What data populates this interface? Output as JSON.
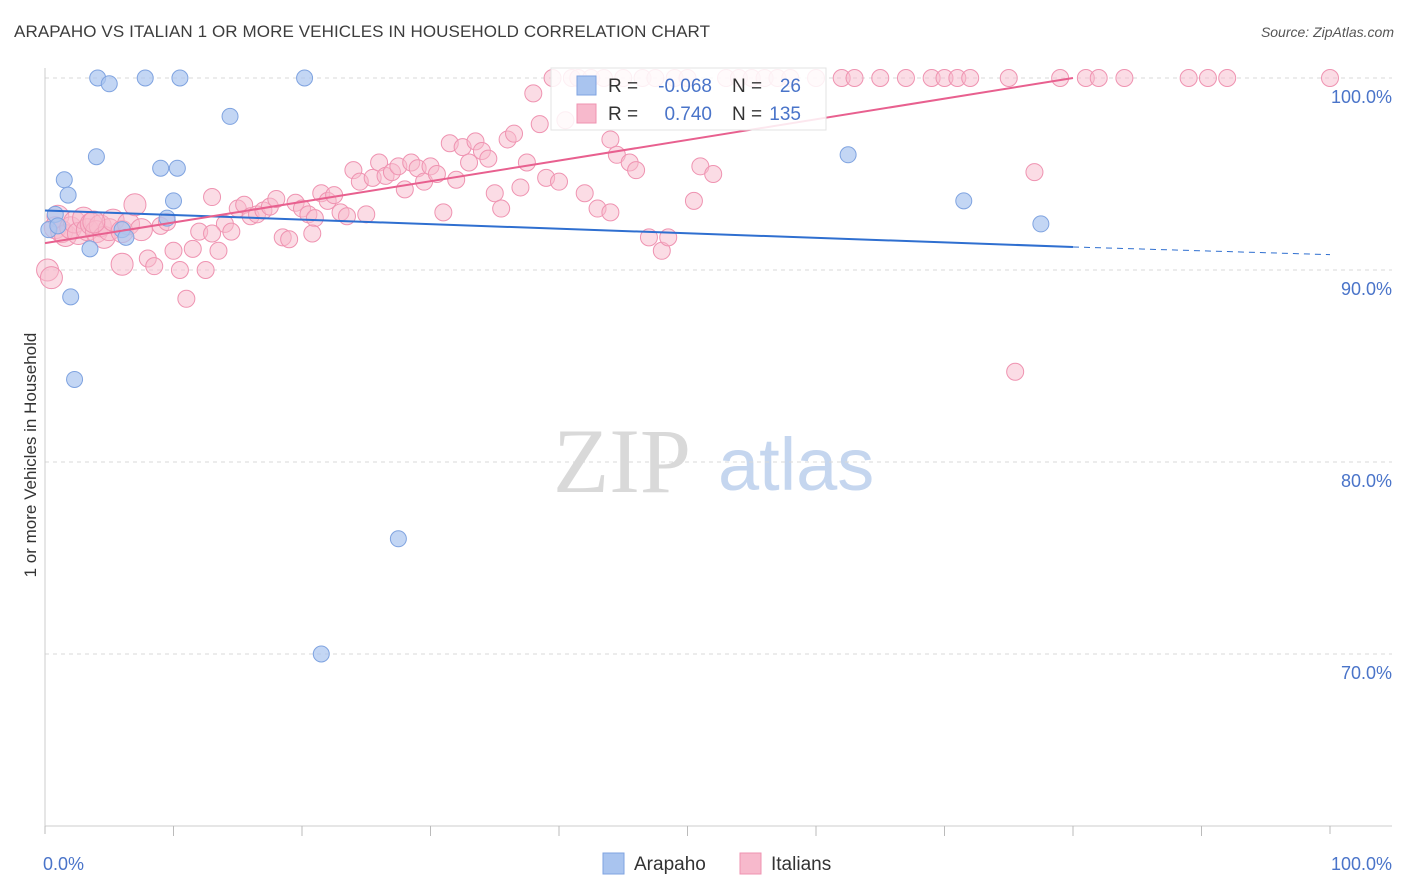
{
  "title": "ARAPAHO VS ITALIAN 1 OR MORE VEHICLES IN HOUSEHOLD CORRELATION CHART",
  "source": "Source: ZipAtlas.com",
  "watermark": {
    "zip": "ZIP",
    "atlas": "atlas"
  },
  "colors": {
    "arapaho_fill": "#a9c4ef",
    "arapaho_stroke": "#7fa3e0",
    "arapaho_line": "#2f6fd0",
    "italian_fill": "#f7b9cc",
    "italian_stroke": "#ef93b1",
    "italian_line": "#e8608f",
    "tick_text": "#4a74c9",
    "grid": "#d9d9d9"
  },
  "stats": {
    "r_label": "R =",
    "n_label": "N =",
    "rows": [
      {
        "series": "Arapaho",
        "r": "-0.068",
        "n": "26"
      },
      {
        "series": "Italians",
        "r": "0.740",
        "n": "135"
      }
    ]
  },
  "chart_data": {
    "type": "scatter",
    "ylabel": "1 or more Vehicles in Household",
    "xlabel": "",
    "xlim": [
      0,
      100
    ],
    "ylim": [
      60.5,
      101.5
    ],
    "x_tick_labels": [
      "0.0%",
      "100.0%"
    ],
    "y_ticks": [
      70,
      80,
      90,
      100
    ],
    "y_tick_labels": [
      "70.0%",
      "80.0%",
      "90.0%",
      "100.0%"
    ],
    "grid": true,
    "legend_position": "bottom",
    "series": [
      {
        "name": "Arapaho",
        "trend": {
          "x": [
            0,
            80
          ],
          "y": [
            93.1,
            91.2
          ],
          "dashed_to": [
            100,
            90.8
          ]
        },
        "points": [
          [
            0.3,
            92.1
          ],
          [
            0.8,
            92.9
          ],
          [
            1.5,
            94.7
          ],
          [
            1.8,
            93.9
          ],
          [
            2.0,
            88.6
          ],
          [
            2.3,
            84.3
          ],
          [
            3.5,
            91.1
          ],
          [
            4.0,
            95.9
          ],
          [
            4.1,
            100.0
          ],
          [
            5.0,
            99.7
          ],
          [
            6.0,
            92.1
          ],
          [
            6.3,
            91.7
          ],
          [
            7.8,
            100.0
          ],
          [
            9.0,
            95.3
          ],
          [
            9.5,
            92.7
          ],
          [
            10.0,
            93.6
          ],
          [
            10.3,
            95.3
          ],
          [
            10.5,
            100.0
          ],
          [
            14.4,
            98.0
          ],
          [
            20.2,
            100.0
          ],
          [
            21.5,
            70.0
          ],
          [
            27.5,
            76.0
          ],
          [
            62.5,
            96.0
          ],
          [
            71.5,
            93.6
          ],
          [
            77.5,
            92.4
          ],
          [
            1.0,
            92.3
          ]
        ]
      },
      {
        "name": "Italians",
        "trend": {
          "x": [
            0,
            80
          ],
          "y": [
            91.4,
            100.0
          ]
        },
        "points": [
          [
            0.2,
            90.0
          ],
          [
            0.5,
            89.6
          ],
          [
            0.8,
            92.2
          ],
          [
            1.0,
            92.8
          ],
          [
            1.3,
            92.0
          ],
          [
            1.6,
            91.8
          ],
          [
            2.0,
            92.2
          ],
          [
            2.3,
            92.5
          ],
          [
            2.6,
            91.9
          ],
          [
            3.0,
            92.7
          ],
          [
            3.3,
            92.1
          ],
          [
            3.6,
            92.4
          ],
          [
            4.0,
            92.0
          ],
          [
            4.3,
            92.3
          ],
          [
            4.6,
            91.7
          ],
          [
            5.0,
            92.1
          ],
          [
            5.3,
            92.6
          ],
          [
            6.0,
            92.0
          ],
          [
            6.5,
            92.4
          ],
          [
            7.0,
            93.4
          ],
          [
            7.5,
            92.1
          ],
          [
            8.0,
            90.6
          ],
          [
            8.5,
            90.2
          ],
          [
            9.0,
            92.3
          ],
          [
            9.5,
            92.5
          ],
          [
            10.0,
            91.0
          ],
          [
            10.5,
            90.0
          ],
          [
            11.0,
            88.5
          ],
          [
            11.5,
            91.1
          ],
          [
            12.0,
            92.0
          ],
          [
            12.5,
            90.0
          ],
          [
            13.0,
            93.8
          ],
          [
            13.5,
            91.0
          ],
          [
            14.0,
            92.4
          ],
          [
            14.5,
            92.0
          ],
          [
            15.0,
            93.2
          ],
          [
            15.5,
            93.4
          ],
          [
            16.0,
            92.8
          ],
          [
            16.5,
            92.9
          ],
          [
            17.0,
            93.1
          ],
          [
            17.5,
            93.3
          ],
          [
            18.0,
            93.7
          ],
          [
            18.5,
            91.7
          ],
          [
            19.0,
            91.6
          ],
          [
            19.5,
            93.5
          ],
          [
            20.0,
            93.2
          ],
          [
            20.5,
            92.9
          ],
          [
            21.0,
            92.7
          ],
          [
            21.5,
            94.0
          ],
          [
            22.0,
            93.6
          ],
          [
            22.5,
            93.9
          ],
          [
            23.0,
            93.0
          ],
          [
            23.5,
            92.8
          ],
          [
            24.0,
            95.2
          ],
          [
            24.5,
            94.6
          ],
          [
            25.0,
            92.9
          ],
          [
            25.5,
            94.8
          ],
          [
            26.0,
            95.6
          ],
          [
            26.5,
            94.9
          ],
          [
            27.0,
            95.1
          ],
          [
            27.5,
            95.4
          ],
          [
            28.0,
            94.2
          ],
          [
            28.5,
            95.6
          ],
          [
            29.0,
            95.3
          ],
          [
            29.5,
            94.6
          ],
          [
            30.0,
            95.4
          ],
          [
            30.5,
            95.0
          ],
          [
            31.0,
            93.0
          ],
          [
            31.5,
            96.6
          ],
          [
            32.0,
            94.7
          ],
          [
            32.5,
            96.4
          ],
          [
            33.0,
            95.6
          ],
          [
            33.5,
            96.7
          ],
          [
            34.0,
            96.2
          ],
          [
            34.5,
            95.8
          ],
          [
            35.0,
            94.0
          ],
          [
            35.5,
            93.2
          ],
          [
            36.0,
            96.8
          ],
          [
            36.5,
            97.1
          ],
          [
            37.0,
            94.3
          ],
          [
            37.5,
            95.6
          ],
          [
            38.0,
            99.2
          ],
          [
            38.5,
            97.6
          ],
          [
            39.0,
            94.8
          ],
          [
            39.5,
            100.0
          ],
          [
            40.0,
            94.6
          ],
          [
            40.5,
            97.8
          ],
          [
            41.0,
            100.0
          ],
          [
            41.5,
            100.0
          ],
          [
            42.0,
            94.0
          ],
          [
            42.5,
            100.0
          ],
          [
            43.0,
            93.2
          ],
          [
            43.5,
            100.0
          ],
          [
            44.0,
            96.8
          ],
          [
            44.5,
            96.0
          ],
          [
            45.0,
            100.0
          ],
          [
            45.5,
            95.6
          ],
          [
            46.0,
            95.2
          ],
          [
            46.5,
            100.0
          ],
          [
            47.0,
            91.7
          ],
          [
            47.5,
            100.0
          ],
          [
            48.0,
            91.0
          ],
          [
            48.5,
            91.7
          ],
          [
            49.0,
            100.0
          ],
          [
            50.0,
            100.0
          ],
          [
            50.5,
            93.6
          ],
          [
            51.0,
            95.4
          ],
          [
            52.0,
            95.0
          ],
          [
            53.0,
            100.0
          ],
          [
            54.0,
            100.0
          ],
          [
            55.0,
            100.0
          ],
          [
            56.0,
            100.0
          ],
          [
            57.0,
            100.0
          ],
          [
            58.0,
            100.0
          ],
          [
            60.0,
            100.0
          ],
          [
            62.0,
            100.0
          ],
          [
            63.0,
            100.0
          ],
          [
            65.0,
            100.0
          ],
          [
            67.0,
            100.0
          ],
          [
            69.0,
            100.0
          ],
          [
            70.0,
            100.0
          ],
          [
            71.0,
            100.0
          ],
          [
            72.0,
            100.0
          ],
          [
            75.0,
            100.0
          ],
          [
            75.5,
            84.7
          ],
          [
            77.0,
            95.1
          ],
          [
            79.0,
            100.0
          ],
          [
            81.0,
            100.0
          ],
          [
            82.0,
            100.0
          ],
          [
            84.0,
            100.0
          ],
          [
            89.0,
            100.0
          ],
          [
            90.5,
            100.0
          ],
          [
            92.0,
            100.0
          ],
          [
            100.0,
            100.0
          ],
          [
            6.0,
            90.3
          ],
          [
            3.8,
            92.5
          ],
          [
            13.0,
            91.9
          ],
          [
            44.0,
            93.0
          ],
          [
            20.8,
            91.9
          ]
        ]
      }
    ]
  },
  "legend": {
    "items": [
      "Arapaho",
      "Italians"
    ]
  }
}
